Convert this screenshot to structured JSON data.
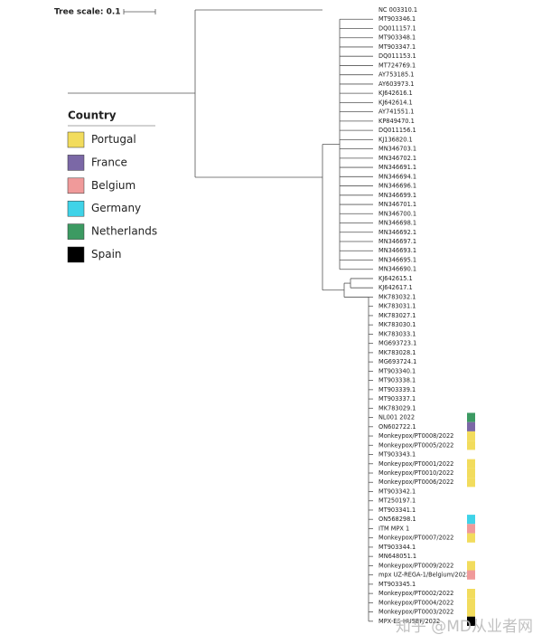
{
  "tree_scale": "Tree scale: 0.1",
  "legend": {
    "title": "Country",
    "items": [
      {
        "label": "Portugal",
        "color": "#f2dc5d"
      },
      {
        "label": "France",
        "color": "#7b68a6"
      },
      {
        "label": "Belgium",
        "color": "#f09a9a"
      },
      {
        "label": "Germany",
        "color": "#3fd3e8"
      },
      {
        "label": "Netherlands",
        "color": "#3c9a62"
      },
      {
        "label": "Spain",
        "color": "#000000"
      }
    ]
  },
  "leaves": [
    {
      "label": "NC 003310.1"
    },
    {
      "label": "MT903346.1"
    },
    {
      "label": "DQ011157.1"
    },
    {
      "label": "MT903348.1"
    },
    {
      "label": "MT903347.1"
    },
    {
      "label": "DQ011153.1"
    },
    {
      "label": "MT724769.1"
    },
    {
      "label": "AY753185.1"
    },
    {
      "label": "AY603973.1"
    },
    {
      "label": "KJ642616.1"
    },
    {
      "label": "KJ642614.1"
    },
    {
      "label": "AY741551.1"
    },
    {
      "label": "KP849470.1"
    },
    {
      "label": "DQ011156.1"
    },
    {
      "label": "KJ136820.1"
    },
    {
      "label": "MN346703.1"
    },
    {
      "label": "MN346702.1"
    },
    {
      "label": "MN346691.1"
    },
    {
      "label": "MN346694.1"
    },
    {
      "label": "MN346696.1"
    },
    {
      "label": "MN346699.1"
    },
    {
      "label": "MN346701.1"
    },
    {
      "label": "MN346700.1"
    },
    {
      "label": "MN346698.1"
    },
    {
      "label": "MN346692.1"
    },
    {
      "label": "MN346697.1"
    },
    {
      "label": "MN346693.1"
    },
    {
      "label": "MN346695.1"
    },
    {
      "label": "MN346690.1"
    },
    {
      "label": "KJ642615.1"
    },
    {
      "label": "KJ642617.1"
    },
    {
      "label": "MK783032.1"
    },
    {
      "label": "MK783031.1"
    },
    {
      "label": "MK783027.1"
    },
    {
      "label": "MK783030.1"
    },
    {
      "label": "MK783033.1"
    },
    {
      "label": "MG693723.1"
    },
    {
      "label": "MK783028.1"
    },
    {
      "label": "MG693724.1"
    },
    {
      "label": "MT903340.1"
    },
    {
      "label": "MT903338.1"
    },
    {
      "label": "MT903339.1"
    },
    {
      "label": "MT903337.1"
    },
    {
      "label": "MK783029.1"
    },
    {
      "label": "NL001 2022",
      "color": "#3c9a62"
    },
    {
      "label": "ON602722.1",
      "color": "#7b68a6"
    },
    {
      "label": "Monkeypox/PT0008/2022",
      "color": "#f2dc5d"
    },
    {
      "label": "Monkeypox/PT0005/2022",
      "color": "#f2dc5d"
    },
    {
      "label": "MT903343.1"
    },
    {
      "label": "Monkeypox/PT0001/2022",
      "color": "#f2dc5d"
    },
    {
      "label": "Monkeypox/PT0010/2022",
      "color": "#f2dc5d"
    },
    {
      "label": "Monkeypox/PT0006/2022",
      "color": "#f2dc5d"
    },
    {
      "label": "MT903342.1"
    },
    {
      "label": "MT250197.1"
    },
    {
      "label": "MT903341.1"
    },
    {
      "label": "ON568298.1",
      "color": "#3fd3e8"
    },
    {
      "label": "ITM MPX 1",
      "color": "#f09a9a"
    },
    {
      "label": "Monkeypox/PT0007/2022",
      "color": "#f2dc5d"
    },
    {
      "label": "MT903344.1"
    },
    {
      "label": "MN648051.1"
    },
    {
      "label": "Monkeypox/PT0009/2022",
      "color": "#f2dc5d"
    },
    {
      "label": "mpx UZ-REGA-1/Belgium/2022",
      "color": "#f09a9a"
    },
    {
      "label": "MT903345.1"
    },
    {
      "label": "Monkeypox/PT0002/2022",
      "color": "#f2dc5d"
    },
    {
      "label": "Monkeypox/PT0004/2022",
      "color": "#f2dc5d"
    },
    {
      "label": "Monkeypox/PT0003/2022",
      "color": "#f2dc5d"
    },
    {
      "label": "MPX-ES-HUSBF/2022",
      "color": "#000000"
    }
  ],
  "watermark": "知乎 @MD从业者网"
}
